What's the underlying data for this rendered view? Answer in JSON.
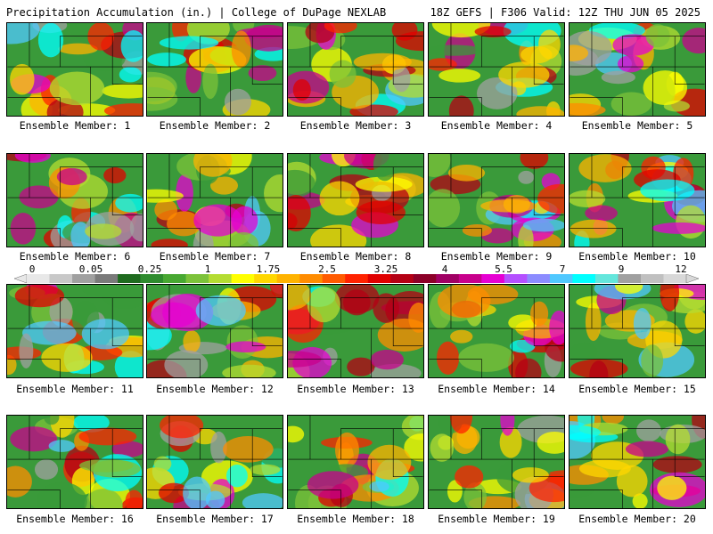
{
  "header": {
    "left": "Precipitation Accumulation (in.) | College of DuPage NEXLAB",
    "right": "18Z GEFS | F306 Valid: 12Z THU JUN 05 2025"
  },
  "panels": [
    {
      "label": "Ensemble Member: 1"
    },
    {
      "label": "Ensemble Member: 2"
    },
    {
      "label": "Ensemble Member: 3"
    },
    {
      "label": "Ensemble Member: 4"
    },
    {
      "label": "Ensemble Member: 5"
    },
    {
      "label": "Ensemble Member: 6"
    },
    {
      "label": "Ensemble Member: 7"
    },
    {
      "label": "Ensemble Member: 8"
    },
    {
      "label": "Ensemble Member: 9"
    },
    {
      "label": "Ensemble Member: 10"
    },
    {
      "label": "Ensemble Member: 11"
    },
    {
      "label": "Ensemble Member: 12"
    },
    {
      "label": "Ensemble Member: 13"
    },
    {
      "label": "Ensemble Member: 14"
    },
    {
      "label": "Ensemble Member: 15"
    },
    {
      "label": "Ensemble Member: 16"
    },
    {
      "label": "Ensemble Member: 17"
    },
    {
      "label": "Ensemble Member: 18"
    },
    {
      "label": "Ensemble Member: 19"
    },
    {
      "label": "Ensemble Member: 20"
    }
  ],
  "colorbar": {
    "labels": [
      "0",
      "0.05",
      "0.25",
      "1",
      "1.75",
      "2.5",
      "3.25",
      "4",
      "5.5",
      "7",
      "9",
      "12"
    ],
    "colors": [
      "#e8e8e8",
      "#c8c8c8",
      "#a0a0a0",
      "#7a7a7a",
      "#1f6b1f",
      "#2e8b2e",
      "#48a832",
      "#7cc23a",
      "#b4dc32",
      "#ffff00",
      "#ffd700",
      "#ffb300",
      "#ff8c00",
      "#ff5a00",
      "#ff2200",
      "#e00000",
      "#b40014",
      "#8c0028",
      "#a00064",
      "#c8008c",
      "#e600d2",
      "#b450ff",
      "#8c8cff",
      "#50c8ff",
      "#00ffff",
      "#64e6dc",
      "#a0a0a0",
      "#c0c0c0",
      "#d8d8d8"
    ]
  }
}
